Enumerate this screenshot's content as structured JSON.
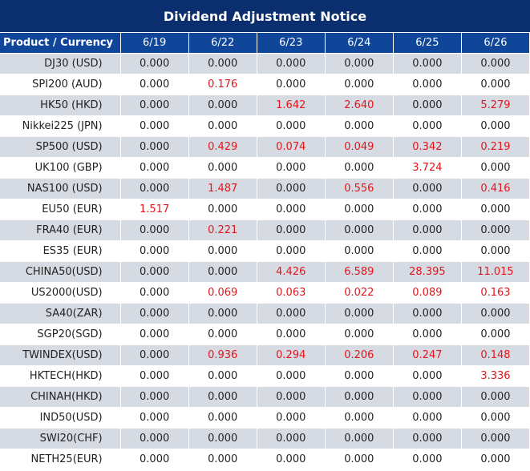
{
  "title": "Dividend Adjustment Notice",
  "header": [
    "Product / Currency",
    "6/19",
    "6/22",
    "6/23",
    "6/24",
    "6/25",
    "6/26"
  ],
  "colors": {
    "title_bg": "#0b2e6e",
    "header_bg": "#10469a",
    "row_shade": "#d6dbe3",
    "nonzero": "#e4151a"
  },
  "rows": [
    {
      "product": "DJ30 (USD)",
      "values": [
        "0.000",
        "0.000",
        "0.000",
        "0.000",
        "0.000",
        "0.000"
      ]
    },
    {
      "product": "SPI200 (AUD)",
      "values": [
        "0.000",
        "0.176",
        "0.000",
        "0.000",
        "0.000",
        "0.000"
      ]
    },
    {
      "product": "HK50 (HKD)",
      "values": [
        "0.000",
        "0.000",
        "1.642",
        "2.640",
        "0.000",
        "5.279"
      ]
    },
    {
      "product": "Nikkei225 (JPN)",
      "values": [
        "0.000",
        "0.000",
        "0.000",
        "0.000",
        "0.000",
        "0.000"
      ]
    },
    {
      "product": "SP500 (USD)",
      "values": [
        "0.000",
        "0.429",
        "0.074",
        "0.049",
        "0.342",
        "0.219"
      ]
    },
    {
      "product": "UK100 (GBP)",
      "values": [
        "0.000",
        "0.000",
        "0.000",
        "0.000",
        "3.724",
        "0.000"
      ]
    },
    {
      "product": "NAS100 (USD)",
      "values": [
        "0.000",
        "1.487",
        "0.000",
        "0.556",
        "0.000",
        "0.416"
      ]
    },
    {
      "product": "EU50 (EUR)",
      "values": [
        "1.517",
        "0.000",
        "0.000",
        "0.000",
        "0.000",
        "0.000"
      ]
    },
    {
      "product": "FRA40 (EUR)",
      "values": [
        "0.000",
        "0.221",
        "0.000",
        "0.000",
        "0.000",
        "0.000"
      ]
    },
    {
      "product": "ES35 (EUR)",
      "values": [
        "0.000",
        "0.000",
        "0.000",
        "0.000",
        "0.000",
        "0.000"
      ]
    },
    {
      "product": "CHINA50(USD)",
      "values": [
        "0.000",
        "0.000",
        "4.426",
        "6.589",
        "28.395",
        "11.015"
      ]
    },
    {
      "product": "US2000(USD)",
      "values": [
        "0.000",
        "0.069",
        "0.063",
        "0.022",
        "0.089",
        "0.163"
      ]
    },
    {
      "product": "SA40(ZAR)",
      "values": [
        "0.000",
        "0.000",
        "0.000",
        "0.000",
        "0.000",
        "0.000"
      ]
    },
    {
      "product": "SGP20(SGD)",
      "values": [
        "0.000",
        "0.000",
        "0.000",
        "0.000",
        "0.000",
        "0.000"
      ]
    },
    {
      "product": "TWINDEX(USD)",
      "values": [
        "0.000",
        "0.936",
        "0.294",
        "0.206",
        "0.247",
        "0.148"
      ]
    },
    {
      "product": "HKTECH(HKD)",
      "values": [
        "0.000",
        "0.000",
        "0.000",
        "0.000",
        "0.000",
        "3.336"
      ]
    },
    {
      "product": "CHINAH(HKD)",
      "values": [
        "0.000",
        "0.000",
        "0.000",
        "0.000",
        "0.000",
        "0.000"
      ]
    },
    {
      "product": "IND50(USD)",
      "values": [
        "0.000",
        "0.000",
        "0.000",
        "0.000",
        "0.000",
        "0.000"
      ]
    },
    {
      "product": "SWI20(CHF)",
      "values": [
        "0.000",
        "0.000",
        "0.000",
        "0.000",
        "0.000",
        "0.000"
      ]
    },
    {
      "product": "NETH25(EUR)",
      "values": [
        "0.000",
        "0.000",
        "0.000",
        "0.000",
        "0.000",
        "0.000"
      ]
    }
  ]
}
